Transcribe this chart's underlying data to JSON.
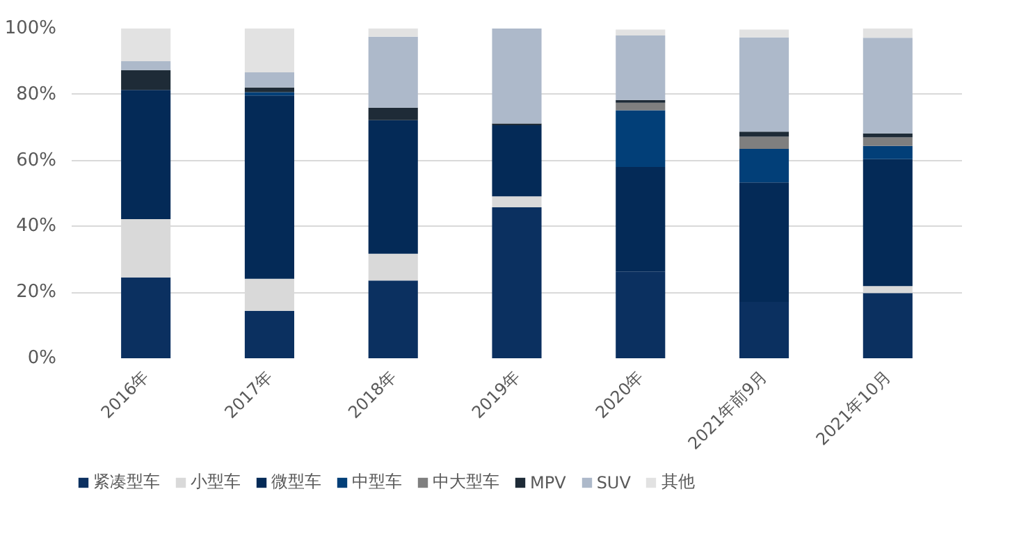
{
  "chart_data": {
    "type": "bar",
    "stacked": true,
    "categories": [
      "2016年",
      "2017年",
      "2018年",
      "2019年",
      "2020年",
      "2021年前9月",
      "2021年10月"
    ],
    "ylim": [
      0,
      100
    ],
    "yticks": [
      {
        "value": 0,
        "label": "0%"
      },
      {
        "value": 20,
        "label": "20%"
      },
      {
        "value": 40,
        "label": "40%"
      },
      {
        "value": 60,
        "label": "60%"
      },
      {
        "value": 80,
        "label": "80%"
      },
      {
        "value": 100,
        "label": "100%"
      }
    ],
    "grid": "y",
    "legend": "bottom",
    "series": [
      {
        "name": "紧凑型车",
        "color": "#0b3060",
        "values": [
          24.5,
          14.4,
          23.6,
          45.8,
          26.3,
          17.1,
          19.8
        ]
      },
      {
        "name": "小型车",
        "color": "#d9d9d9",
        "values": [
          17.7,
          9.7,
          8.1,
          3.3,
          null,
          null,
          2.1
        ]
      },
      {
        "name": "微型车",
        "color": "#042a57",
        "values": [
          39.2,
          55.6,
          40.5,
          21.6,
          31.7,
          36.2,
          38.5
        ]
      },
      {
        "name": "中型车",
        "color": "#023f78",
        "values": [
          0,
          1.0,
          0,
          0,
          17.2,
          10.2,
          4.0
        ]
      },
      {
        "name": "中大型车",
        "color": "#7f7f7f",
        "values": [
          0,
          0,
          0,
          0,
          2.3,
          3.7,
          2.6
        ]
      },
      {
        "name": "MPV",
        "color": "#1e2b37",
        "values": [
          6.0,
          1.4,
          3.8,
          0.5,
          0.8,
          1.5,
          1.2
        ]
      },
      {
        "name": "SUV",
        "color": "#adb9ca",
        "values": [
          2.7,
          4.6,
          21.5,
          28.8,
          19.6,
          28.6,
          29.0
        ]
      },
      {
        "name": "其他",
        "color": "#e2e2e2",
        "values": [
          9.9,
          13.3,
          2.5,
          0,
          1.8,
          2.4,
          2.8
        ]
      }
    ]
  }
}
